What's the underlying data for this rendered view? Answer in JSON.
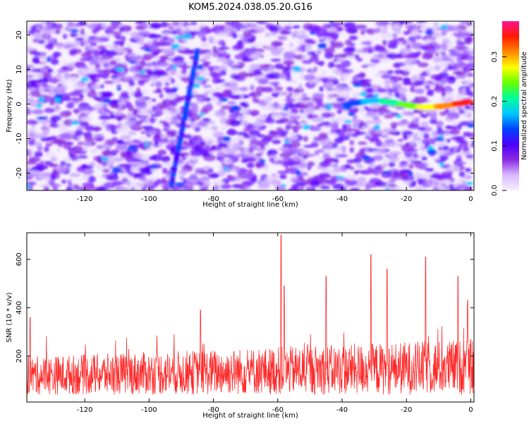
{
  "title": "KOM5.2024.038.05.20.G16",
  "chart_data": [
    {
      "type": "heatmap",
      "xlabel": "Height of straight line (km)",
      "ylabel": "Frequency (Hz)",
      "xlim": [
        -138,
        1
      ],
      "ylim": [
        -25,
        24
      ],
      "xticks": [
        -120,
        -100,
        -80,
        -60,
        -40,
        -20,
        0
      ],
      "yticks": [
        -20,
        -10,
        0,
        10,
        20
      ],
      "colorbar": {
        "label": "Normalized spectral amplitude",
        "range": [
          0,
          0.38
        ],
        "ticks": [
          0.0,
          0.1,
          0.2,
          0.3
        ],
        "colors": [
          "#f8f0ff",
          "#d9b8ff",
          "#8a2be2",
          "#4b00ff",
          "#0044ff",
          "#00c8ff",
          "#00ff99",
          "#66ff00",
          "#ffff00",
          "#ff8800",
          "#ff1a00",
          "#ff1493"
        ]
      },
      "features": [
        {
          "name": "slanted streak",
          "x": [
            -93,
            -85
          ],
          "y": [
            -23,
            15
          ],
          "amplitude": 0.15
        },
        {
          "name": "strong tail near zero frequency",
          "x": [
            -38,
            -1
          ],
          "y": [
            0,
            0
          ],
          "amplitude_max": 0.35
        }
      ]
    },
    {
      "type": "line",
      "xlabel": "Height of straight line (km)",
      "ylabel": "SNR (10 * v/v)",
      "xlim": [
        -138,
        1
      ],
      "ylim": [
        10,
        710
      ],
      "xticks": [
        -120,
        -100,
        -80,
        -60,
        -40,
        -20,
        0
      ],
      "yticks": [
        200,
        400,
        600
      ],
      "color": "#ff2a2a",
      "baseline_range": [
        40,
        250
      ],
      "peaks": [
        {
          "x": -59,
          "y": 700
        },
        {
          "x": -58,
          "y": 490
        },
        {
          "x": -45,
          "y": 530
        },
        {
          "x": -31,
          "y": 620
        },
        {
          "x": -26,
          "y": 560
        },
        {
          "x": -14,
          "y": 610
        },
        {
          "x": -4,
          "y": 530
        },
        {
          "x": -1,
          "y": 430
        },
        {
          "x": -137,
          "y": 360
        },
        {
          "x": -84,
          "y": 390
        }
      ]
    }
  ]
}
